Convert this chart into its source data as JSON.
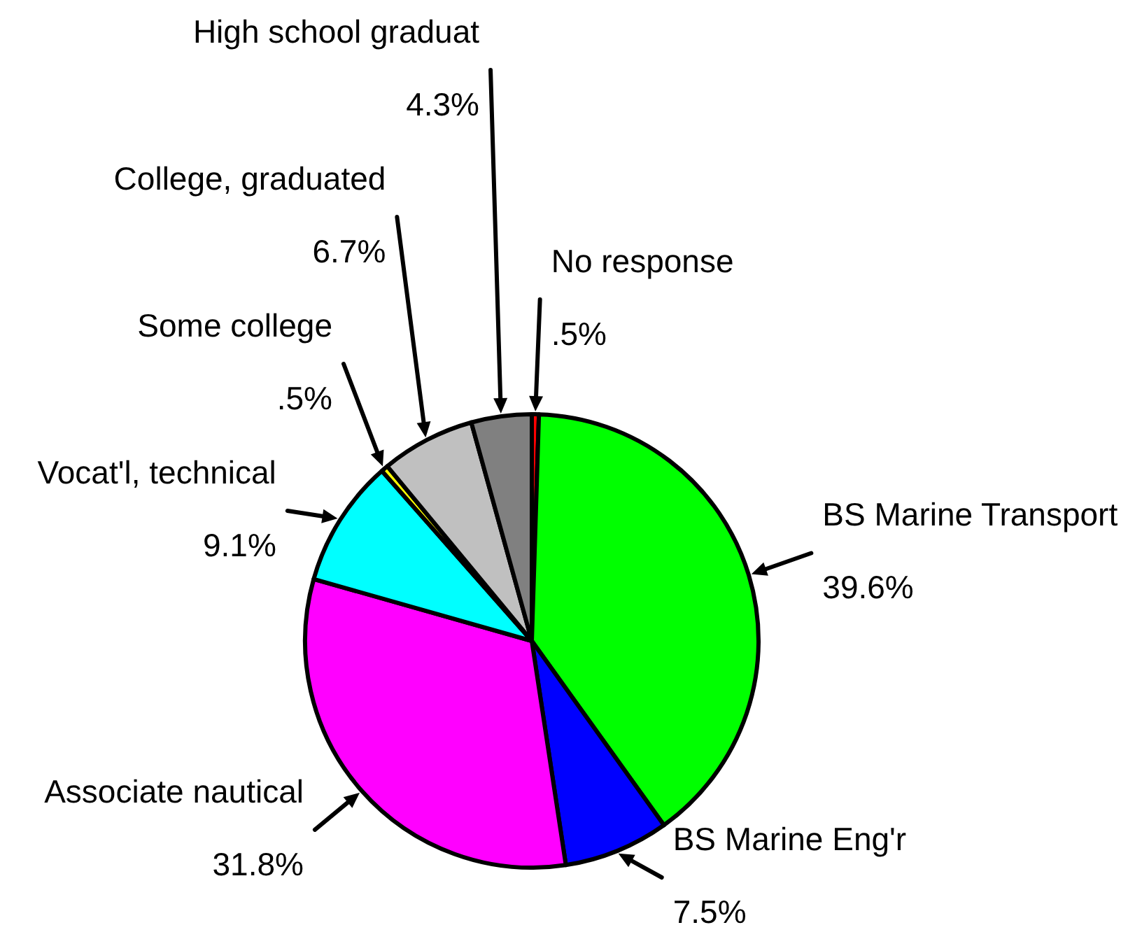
{
  "chart_data": {
    "type": "pie",
    "categories": [
      "No response",
      "BS Marine Transport",
      "BS Marine Eng'r",
      "Associate nautical",
      "Vocat'l, technical",
      "Some college",
      "College, graduated",
      "High school graduat"
    ],
    "values": [
      0.5,
      39.6,
      7.5,
      31.8,
      9.1,
      0.5,
      6.7,
      4.3
    ],
    "colors": [
      "#ff0000",
      "#00ff00",
      "#0000ff",
      "#ff00ff",
      "#00ffff",
      "#ffff00",
      "#c0c0c0",
      "#808080"
    ],
    "value_labels": [
      ".5%",
      "39.6%",
      "7.5%",
      "31.8%",
      "9.1%",
      ".5%",
      "6.7%",
      "4.3%"
    ]
  }
}
